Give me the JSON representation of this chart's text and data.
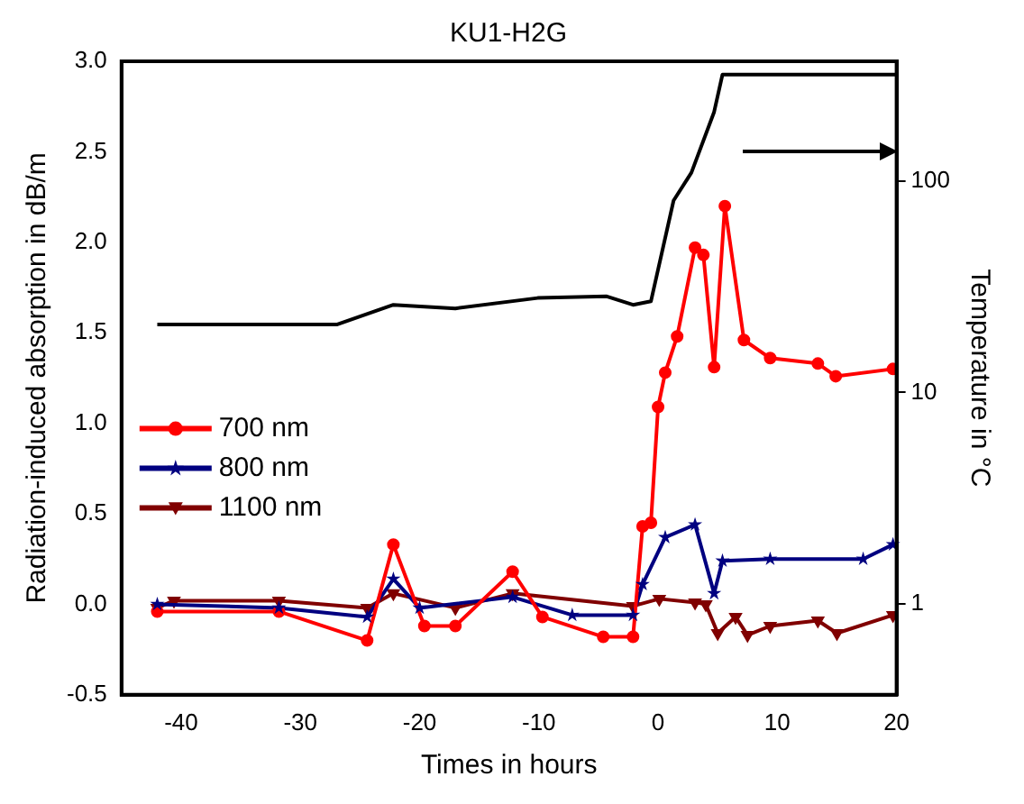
{
  "chart_data": {
    "type": "line",
    "title": "KU1-H2G",
    "xlabel": "Times in hours",
    "ylabel": "Radiation-induced absorption in dB/m",
    "y2label": "Temperature in °C",
    "xlim": [
      -45,
      20
    ],
    "xticks": [
      -40,
      -30,
      -20,
      -10,
      0,
      10,
      20
    ],
    "ylim": [
      -0.5,
      3.0
    ],
    "yticks": [
      {
        "value": -0.5,
        "label": "-0.5"
      },
      {
        "value": 0,
        "label": "0.0"
      },
      {
        "value": 0.5,
        "label": "0.5"
      },
      {
        "value": 1,
        "label": "1.0"
      },
      {
        "value": 1.5,
        "label": "1.5"
      },
      {
        "value": 2,
        "label": "2.0"
      },
      {
        "value": 2.5,
        "label": "2.5"
      },
      {
        "value": 3,
        "label": "3.0"
      }
    ],
    "y2lim": [
      0.37,
      370
    ],
    "y2ticks": [
      1,
      10,
      100
    ],
    "log": "y2",
    "grid": false,
    "legend": "left",
    "line_style": "solid",
    "series": [
      {
        "name": "700 nm",
        "color": "#ff0000",
        "marker": "circle",
        "x": [
          -42,
          -31.8,
          -24.4,
          -22.2,
          -19.6,
          -17,
          -12.2,
          -9.7,
          -4.6,
          -2.1,
          -1.3,
          -0.6,
          0,
          0.6,
          1.6,
          3.1,
          3.8,
          4.7,
          5.6,
          7.2,
          9.4,
          13.4,
          14.9,
          19.7
        ],
        "values": [
          -0.04,
          -0.04,
          -0.2,
          0.33,
          -0.12,
          -0.12,
          0.18,
          -0.07,
          -0.18,
          -0.18,
          0.43,
          0.45,
          1.09,
          1.28,
          1.48,
          1.97,
          1.93,
          1.31,
          2.2,
          1.46,
          1.36,
          1.33,
          1.26,
          1.3
        ]
      },
      {
        "name": "800 nm",
        "color": "#000080",
        "marker": "star",
        "x": [
          -42,
          -31.8,
          -24.4,
          -22.2,
          -20,
          -12.2,
          -7.2,
          -2.1,
          -1.3,
          0.6,
          3.1,
          4.7,
          5.4,
          9.4,
          17.2,
          19.7
        ],
        "values": [
          0,
          -0.02,
          -0.07,
          0.14,
          -0.02,
          0.04,
          -0.06,
          -0.06,
          0.11,
          0.37,
          0.44,
          0.06,
          0.24,
          0.25,
          0.25,
          0.33
        ]
      },
      {
        "name": "1100 nm",
        "color": "#800000",
        "marker": "triangle",
        "x": [
          -42,
          -40.6,
          -31.8,
          -24.4,
          -22.2,
          -17,
          -12.2,
          -2.1,
          0.1,
          3.1,
          4,
          5,
          6.5,
          7.5,
          9.4,
          13.4,
          15,
          19.7
        ],
        "values": [
          -0.02,
          0.02,
          0.02,
          -0.02,
          0.06,
          -0.02,
          0.06,
          -0.01,
          0.03,
          0.01,
          0,
          -0.16,
          -0.07,
          -0.17,
          -0.12,
          -0.09,
          -0.16,
          -0.06
        ]
      },
      {
        "color": "#000000",
        "marker": "none",
        "axis": "y2",
        "x": [
          -42,
          -26.9,
          -22.2,
          -17,
          -10.1,
          -4.3,
          -2.1,
          -0.6,
          1.3,
          2.8,
          4.7,
          5.4,
          20
        ],
        "values": [
          21,
          21,
          26,
          25,
          28,
          28.5,
          26,
          27,
          81,
          110,
          213,
          320,
          320
        ]
      }
    ]
  }
}
